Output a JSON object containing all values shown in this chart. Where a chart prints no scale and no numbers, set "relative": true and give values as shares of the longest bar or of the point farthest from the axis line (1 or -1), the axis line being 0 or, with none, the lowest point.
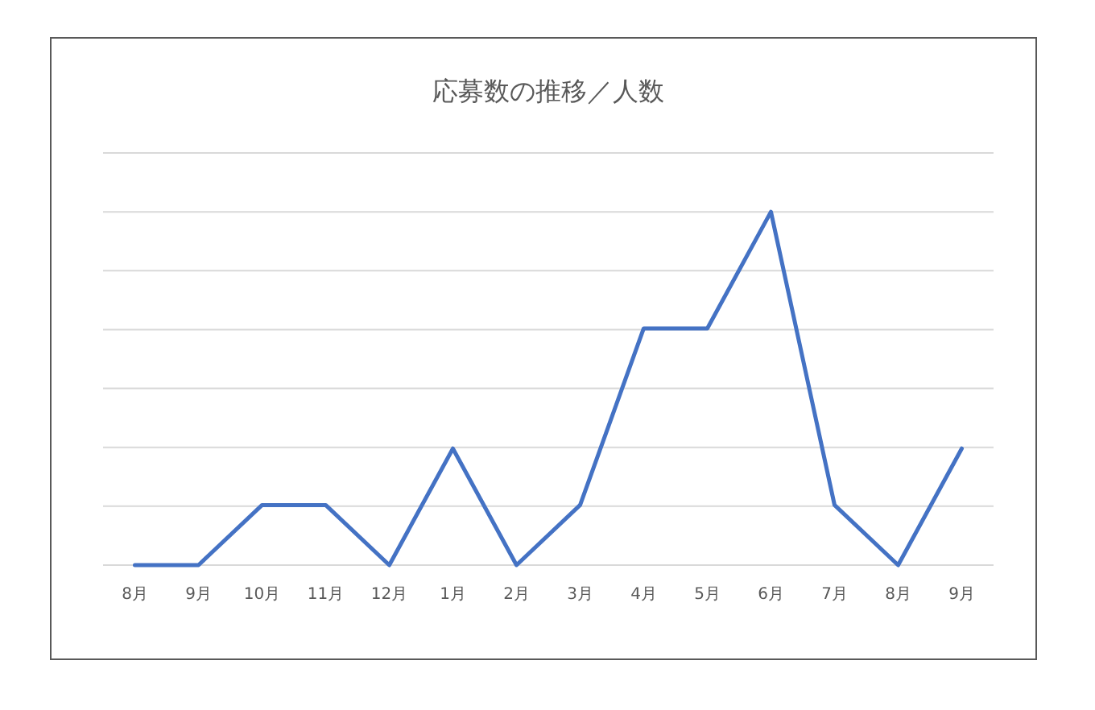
{
  "chart_data": {
    "type": "line",
    "title": "応募数の推移／人数",
    "categories": [
      "8月",
      "9月",
      "10月",
      "11月",
      "12月",
      "1月",
      "2月",
      "3月",
      "4月",
      "5月",
      "6月",
      "7月",
      "8月",
      "9月"
    ],
    "series": [
      {
        "color": "#4472c4",
        "values": [
          0,
          0,
          0.17,
          0.17,
          0,
          0.33,
          0,
          0.17,
          0.67,
          0.67,
          1,
          0.17,
          0,
          0.33
        ]
      }
    ],
    "relative": true,
    "grid": true,
    "marker": "none",
    "line_style": "solid"
  }
}
